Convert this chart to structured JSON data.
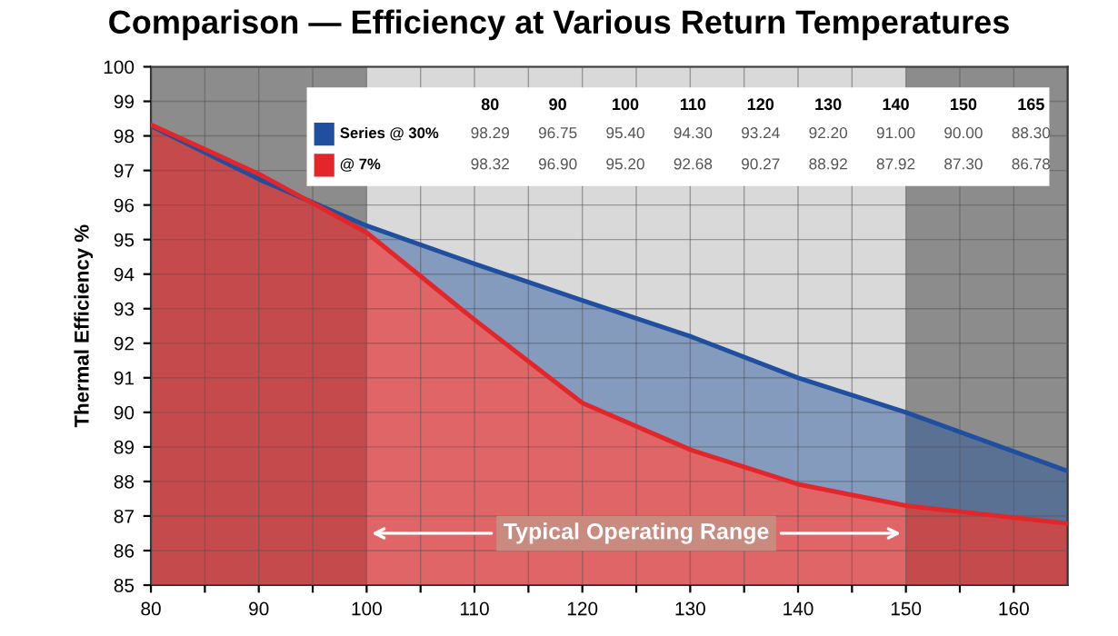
{
  "chart_data": {
    "type": "area",
    "title": "Comparison — Efficiency at Various Return Temperatures",
    "ylabel": "Thermal Efficiency %",
    "x": [
      80,
      90,
      100,
      110,
      120,
      130,
      140,
      150,
      165
    ],
    "series": [
      {
        "name": "Series @ 30%",
        "color": "#1f4f9e",
        "values": [
          98.29,
          96.75,
          95.4,
          94.3,
          93.24,
          92.2,
          91.0,
          90.0,
          88.3
        ]
      },
      {
        "name": "@ 7%",
        "color": "#e3262a",
        "values": [
          98.32,
          96.9,
          95.2,
          92.68,
          90.27,
          88.92,
          87.92,
          87.3,
          86.78
        ]
      }
    ],
    "xlim": [
      80,
      165
    ],
    "ylim": [
      85,
      100
    ],
    "xticks": [
      80,
      {
        "value": 85,
        "label": null
      },
      90,
      {
        "value": 95,
        "label": null
      },
      100,
      {
        "value": 105,
        "label": null
      },
      110,
      {
        "value": 115,
        "label": null
      },
      120,
      {
        "value": 125,
        "label": null
      },
      130,
      {
        "value": 135,
        "label": null
      },
      140,
      {
        "value": 145,
        "label": null
      },
      150,
      {
        "value": 155,
        "label": null
      },
      160
    ],
    "yticks": [
      85,
      86,
      87,
      88,
      89,
      90,
      91,
      92,
      93,
      94,
      95,
      96,
      97,
      98,
      99,
      100
    ],
    "bands": [
      {
        "axis": "x",
        "from": 100,
        "to": 150,
        "label": "Typical Operating Range",
        "color": "#d9d9d9"
      }
    ],
    "annotations": [
      "80",
      "90",
      "100",
      "110",
      "120",
      "130",
      "140",
      "150",
      "165",
      "98.29",
      "96.75",
      "95.40",
      "94.30",
      "93.24",
      "92.20",
      "91.00",
      "90.00",
      "88.30",
      "98.32",
      "96.90",
      "95.20",
      "92.68",
      "90.27",
      "88.92",
      "87.92",
      "87.30",
      "86.78"
    ],
    "grid": true,
    "legend": "top left"
  }
}
